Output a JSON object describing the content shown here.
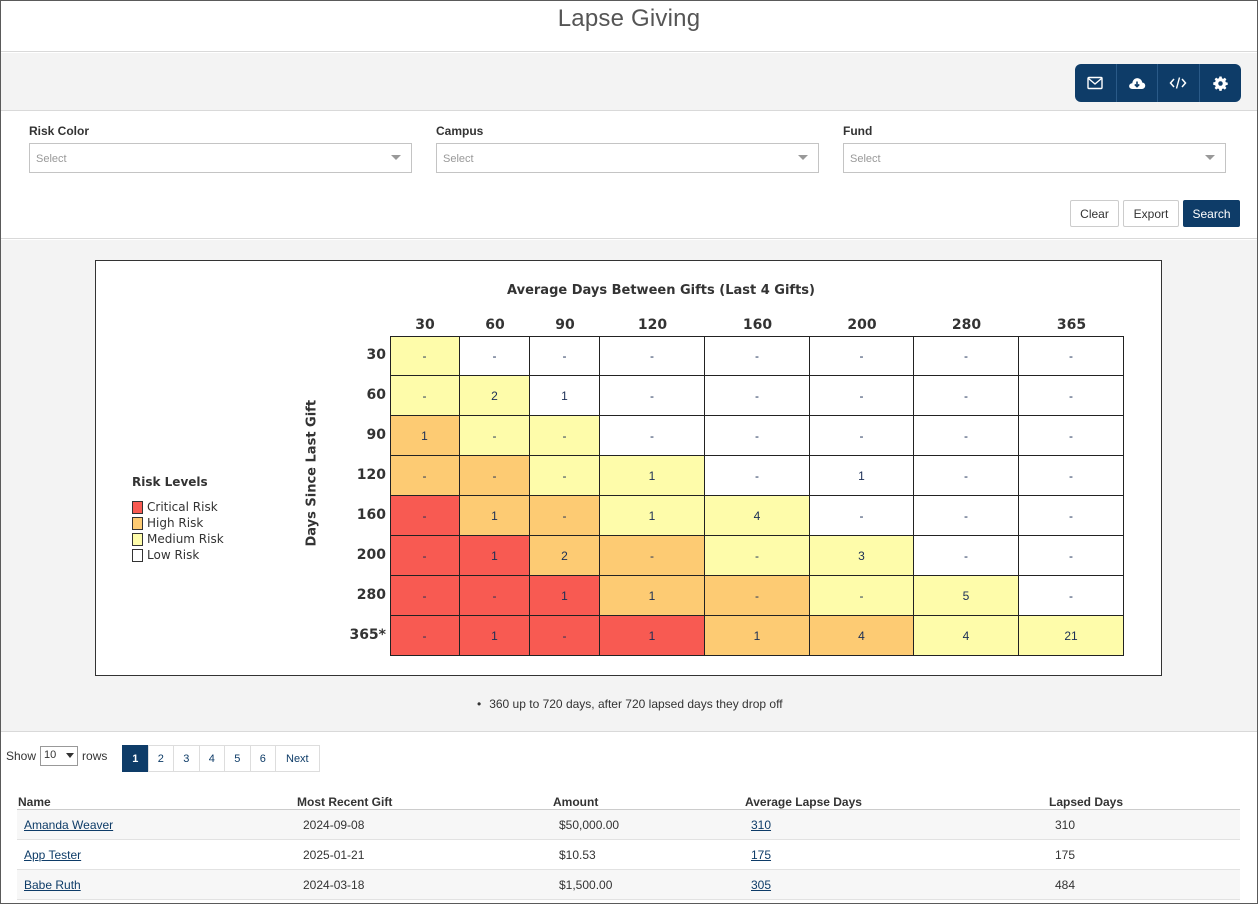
{
  "page": {
    "title": "Lapse Giving"
  },
  "toolbar": {
    "buttons": [
      {
        "icon": "envelope-icon"
      },
      {
        "icon": "cloud-download-icon"
      },
      {
        "icon": "code-icon"
      },
      {
        "icon": "gear-icon"
      }
    ]
  },
  "filters": {
    "risk_color": {
      "label": "Risk Color",
      "placeholder": "Select"
    },
    "campus": {
      "label": "Campus",
      "placeholder": "Select"
    },
    "fund": {
      "label": "Fund",
      "placeholder": "Select"
    },
    "clear_label": "Clear",
    "export_label": "Export",
    "search_label": "Search"
  },
  "colors": {
    "critical": "#f85a52",
    "high": "#fdcb73",
    "medium": "#fefcaa",
    "low": "#ffffff",
    "primary": "#0e3c68"
  },
  "chart_data": {
    "type": "heatmap",
    "title": "Average Days Between Gifts (Last 4 Gifts)",
    "xlabel": "Average Days Between Gifts (Last 4 Gifts)",
    "ylabel": "Days Since Last Gift",
    "columns": [
      "30",
      "60",
      "90",
      "120",
      "160",
      "200",
      "280",
      "365"
    ],
    "rows": [
      "30",
      "60",
      "90",
      "120",
      "160",
      "200",
      "280",
      "365*"
    ],
    "values": [
      [
        "-",
        "-",
        "-",
        "-",
        "-",
        "-",
        "-",
        "-"
      ],
      [
        "-",
        "2",
        "1",
        "-",
        "-",
        "-",
        "-",
        "-"
      ],
      [
        "1",
        "-",
        "-",
        "-",
        "-",
        "-",
        "-",
        "-"
      ],
      [
        "-",
        "-",
        "-",
        "1",
        "-",
        "1",
        "-",
        "-"
      ],
      [
        "-",
        "1",
        "-",
        "1",
        "4",
        "-",
        "-",
        "-"
      ],
      [
        "-",
        "1",
        "2",
        "-",
        "-",
        "3",
        "-",
        "-"
      ],
      [
        "-",
        "-",
        "1",
        "1",
        "-",
        "-",
        "5",
        "-"
      ],
      [
        "-",
        "1",
        "-",
        "1",
        "1",
        "4",
        "4",
        "21"
      ]
    ],
    "risk": [
      [
        "medium",
        "low",
        "low",
        "low",
        "low",
        "low",
        "low",
        "low"
      ],
      [
        "medium",
        "medium",
        "low",
        "low",
        "low",
        "low",
        "low",
        "low"
      ],
      [
        "high",
        "medium",
        "medium",
        "low",
        "low",
        "low",
        "low",
        "low"
      ],
      [
        "high",
        "high",
        "medium",
        "medium",
        "low",
        "low",
        "low",
        "low"
      ],
      [
        "critical",
        "high",
        "high",
        "medium",
        "medium",
        "low",
        "low",
        "low"
      ],
      [
        "critical",
        "critical",
        "high",
        "high",
        "medium",
        "medium",
        "low",
        "low"
      ],
      [
        "critical",
        "critical",
        "critical",
        "high",
        "high",
        "medium",
        "medium",
        "low"
      ],
      [
        "critical",
        "critical",
        "critical",
        "critical",
        "high",
        "high",
        "medium",
        "medium"
      ]
    ],
    "legend": {
      "title": "Risk Levels",
      "items": [
        {
          "label": "Critical Risk",
          "level": "critical"
        },
        {
          "label": "High Risk",
          "level": "high"
        },
        {
          "label": "Medium Risk",
          "level": "medium"
        },
        {
          "label": "Low Risk",
          "level": "low"
        }
      ]
    }
  },
  "footnote": "360 up to 720 days, after 720 lapsed days they drop off",
  "list": {
    "show_label": "Show",
    "rows_label": "rows",
    "rows_value": "10",
    "pages": [
      "1",
      "2",
      "3",
      "4",
      "5",
      "6"
    ],
    "next_label": "Next",
    "columns": [
      "Name",
      "Most Recent Gift",
      "Amount",
      "Average Lapse Days",
      "Lapsed Days"
    ],
    "rows": [
      {
        "name": "Amanda Weaver",
        "recent": "2024-09-08",
        "amount": "$50,000.00",
        "avg": "310",
        "lapsed": "310"
      },
      {
        "name": "App Tester",
        "recent": "2025-01-21",
        "amount": "$10.53",
        "avg": "175",
        "lapsed": "175"
      },
      {
        "name": "Babe Ruth",
        "recent": "2024-03-18",
        "amount": "$1,500.00",
        "avg": "305",
        "lapsed": "484"
      }
    ]
  }
}
